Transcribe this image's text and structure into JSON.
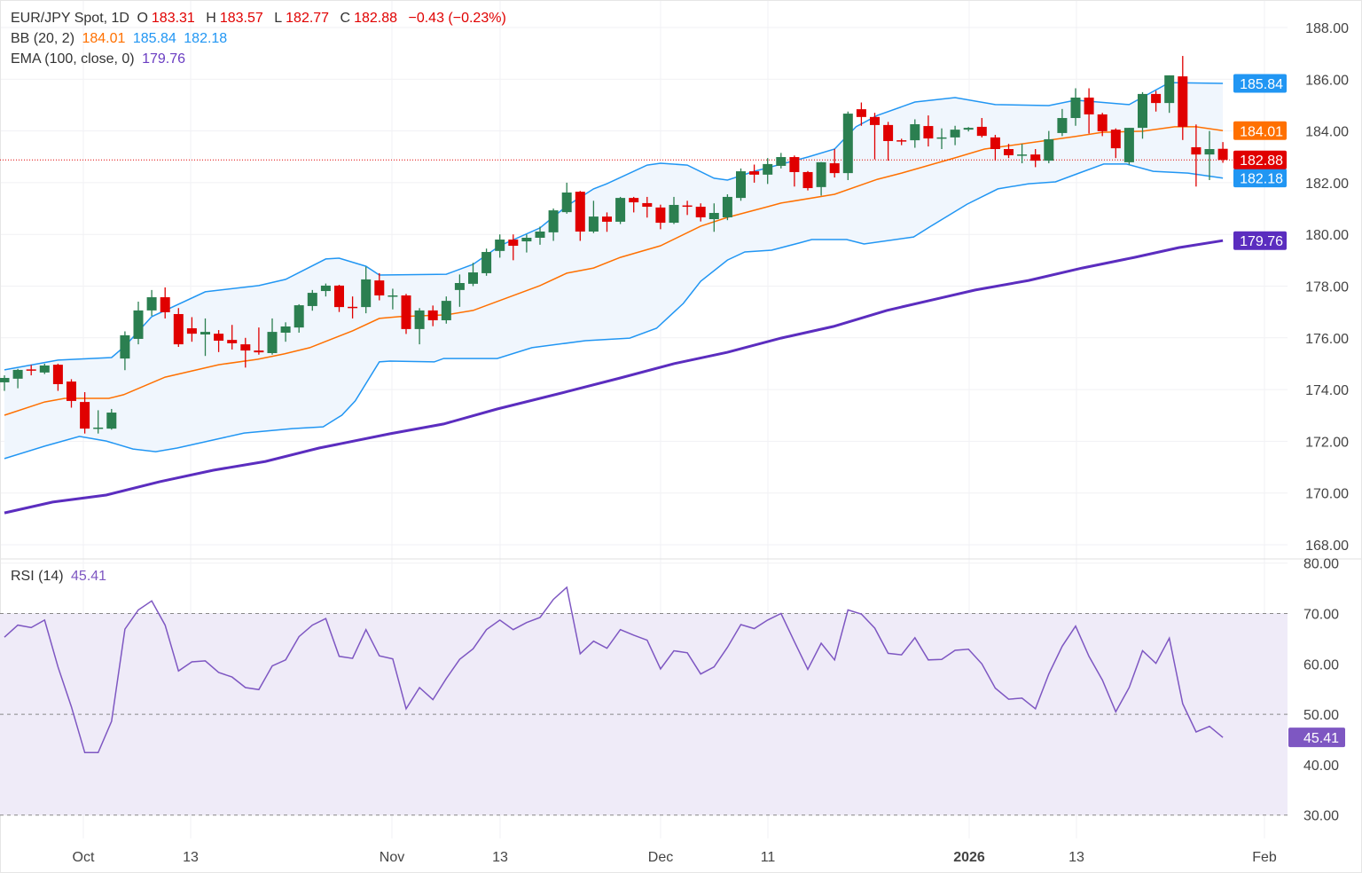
{
  "header": {
    "symbol": "EUR/JPY Spot, 1D",
    "open_label": "O",
    "open": "183.31",
    "high_label": "H",
    "high": "183.57",
    "low_label": "L",
    "low": "182.77",
    "close_label": "C",
    "close": "182.88",
    "change": "−0.43 (−0.23%)"
  },
  "bb_legend": {
    "label": "BB (20, 2)",
    "middle": "184.01",
    "upper": "185.84",
    "lower": "182.18"
  },
  "ema_legend": {
    "label": "EMA (100, close, 0)",
    "value": "179.76"
  },
  "rsi_legend": {
    "label": "RSI (14)",
    "value": "45.41"
  },
  "colors": {
    "up": "#2b7f50",
    "down": "#e00000",
    "bb_upper_lower": "#2196f3",
    "bb_middle": "#ff7000",
    "bb_fill": "#f0f6fd",
    "ema": "#5b2dbf",
    "rsi": "#7e57c2",
    "rsi_fill": "#efebf8",
    "last_price": "#e00000"
  },
  "chart_data": [
    {
      "type": "candlestick",
      "title": "EUR/JPY Spot, 1D",
      "ylim": [
        167.5,
        188.5
      ],
      "y_ticks": [
        "168.00",
        "170.00",
        "172.00",
        "174.00",
        "176.00",
        "178.00",
        "180.00",
        "182.00",
        "184.00",
        "186.00",
        "188.00"
      ],
      "x_ticks": [
        "Oct",
        "13",
        "Nov",
        "13",
        "Dec",
        "11",
        "2026",
        "13",
        "Feb"
      ],
      "grid": true,
      "ohlc": [
        [
          174.28,
          174.55,
          173.95,
          174.45
        ],
        [
          174.42,
          174.8,
          174.05,
          174.76
        ],
        [
          174.78,
          174.95,
          174.55,
          174.74
        ],
        [
          174.66,
          175.0,
          174.6,
          174.93
        ],
        [
          174.96,
          175.0,
          173.95,
          174.21
        ],
        [
          174.31,
          174.4,
          173.3,
          173.56
        ],
        [
          173.52,
          173.9,
          172.3,
          172.49
        ],
        [
          172.49,
          173.2,
          172.3,
          172.53
        ],
        [
          172.49,
          173.25,
          172.45,
          173.11
        ],
        [
          175.2,
          176.25,
          174.75,
          176.1
        ],
        [
          175.96,
          177.4,
          175.75,
          177.06
        ],
        [
          177.06,
          177.85,
          176.85,
          177.57
        ],
        [
          177.57,
          177.95,
          176.75,
          176.99
        ],
        [
          176.92,
          177.15,
          175.65,
          175.75
        ],
        [
          176.37,
          176.8,
          175.85,
          176.16
        ],
        [
          176.13,
          176.75,
          175.3,
          176.23
        ],
        [
          176.16,
          176.3,
          175.45,
          175.89
        ],
        [
          175.92,
          176.5,
          175.55,
          175.79
        ],
        [
          175.75,
          176.0,
          174.85,
          175.51
        ],
        [
          175.51,
          176.4,
          175.35,
          175.44
        ],
        [
          175.41,
          176.75,
          175.35,
          176.23
        ],
        [
          176.2,
          176.6,
          175.85,
          176.44
        ],
        [
          176.4,
          177.3,
          176.2,
          177.26
        ],
        [
          177.23,
          177.85,
          177.05,
          177.74
        ],
        [
          177.81,
          178.1,
          177.6,
          178.02
        ],
        [
          178.02,
          178.05,
          177.0,
          177.19
        ],
        [
          177.2,
          177.6,
          176.75,
          177.16
        ],
        [
          177.19,
          178.75,
          176.95,
          178.26
        ],
        [
          178.22,
          178.5,
          177.45,
          177.64
        ],
        [
          177.62,
          177.9,
          177.1,
          177.64
        ],
        [
          177.64,
          177.7,
          176.15,
          176.34
        ],
        [
          176.34,
          177.15,
          175.75,
          177.06
        ],
        [
          177.06,
          177.25,
          176.45,
          176.68
        ],
        [
          176.68,
          177.6,
          176.55,
          177.43
        ],
        [
          177.85,
          178.45,
          177.2,
          178.12
        ],
        [
          178.09,
          178.9,
          178.0,
          178.53
        ],
        [
          178.5,
          179.45,
          178.4,
          179.32
        ],
        [
          179.36,
          180.0,
          179.1,
          179.8
        ],
        [
          179.8,
          180.0,
          179.0,
          179.56
        ],
        [
          179.73,
          180.0,
          179.3,
          179.87
        ],
        [
          179.87,
          180.3,
          179.6,
          180.11
        ],
        [
          180.08,
          181.0,
          179.75,
          180.93
        ],
        [
          180.86,
          182.0,
          180.8,
          181.62
        ],
        [
          181.65,
          181.68,
          179.75,
          180.11
        ],
        [
          180.11,
          181.3,
          180.05,
          180.69
        ],
        [
          180.69,
          180.85,
          180.1,
          180.49
        ],
        [
          180.49,
          181.45,
          180.4,
          181.41
        ],
        [
          181.41,
          181.45,
          180.85,
          181.24
        ],
        [
          181.21,
          181.45,
          180.65,
          181.07
        ],
        [
          181.04,
          181.15,
          180.2,
          180.45
        ],
        [
          180.45,
          181.45,
          180.4,
          181.14
        ],
        [
          181.12,
          181.3,
          180.75,
          181.07
        ],
        [
          181.07,
          181.2,
          180.5,
          180.66
        ],
        [
          180.59,
          181.2,
          180.1,
          180.83
        ],
        [
          180.66,
          181.55,
          180.55,
          181.45
        ],
        [
          181.41,
          182.55,
          181.3,
          182.44
        ],
        [
          182.44,
          182.7,
          182.0,
          182.31
        ],
        [
          182.31,
          182.95,
          181.95,
          182.72
        ],
        [
          182.65,
          183.15,
          182.55,
          182.99
        ],
        [
          182.99,
          183.05,
          181.85,
          182.41
        ],
        [
          182.41,
          182.45,
          181.7,
          181.79
        ],
        [
          181.83,
          182.8,
          181.5,
          182.79
        ],
        [
          182.75,
          183.3,
          182.2,
          182.37
        ],
        [
          182.37,
          184.75,
          182.1,
          184.67
        ],
        [
          184.84,
          185.1,
          184.2,
          184.54
        ],
        [
          184.54,
          184.7,
          182.9,
          184.23
        ],
        [
          184.23,
          184.35,
          182.85,
          183.61
        ],
        [
          183.64,
          183.7,
          183.45,
          183.61
        ],
        [
          183.64,
          184.45,
          183.35,
          184.26
        ],
        [
          184.19,
          184.6,
          183.4,
          183.71
        ],
        [
          183.72,
          184.1,
          183.3,
          183.75
        ],
        [
          183.75,
          184.2,
          183.45,
          184.05
        ],
        [
          184.05,
          184.15,
          183.98,
          184.12
        ],
        [
          184.16,
          184.5,
          183.75,
          183.81
        ],
        [
          183.75,
          183.85,
          182.85,
          183.3
        ],
        [
          183.3,
          183.5,
          182.95,
          183.06
        ],
        [
          183.07,
          183.5,
          182.75,
          183.09
        ],
        [
          183.09,
          183.3,
          182.6,
          182.85
        ],
        [
          182.85,
          184.0,
          182.75,
          183.68
        ],
        [
          183.92,
          184.85,
          183.8,
          184.5
        ],
        [
          184.5,
          185.65,
          184.2,
          185.29
        ],
        [
          185.29,
          185.65,
          183.9,
          184.64
        ],
        [
          184.64,
          184.7,
          183.8,
          183.99
        ],
        [
          184.05,
          184.1,
          182.95,
          183.33
        ],
        [
          182.79,
          184.12,
          182.7,
          184.12
        ],
        [
          184.12,
          185.5,
          183.7,
          185.43
        ],
        [
          185.43,
          185.55,
          184.75,
          185.08
        ],
        [
          185.08,
          186.15,
          184.7,
          186.15
        ],
        [
          186.11,
          186.9,
          183.65,
          184.16
        ],
        [
          183.37,
          184.25,
          181.85,
          183.09
        ],
        [
          183.09,
          184.0,
          182.1,
          183.3
        ],
        [
          183.31,
          183.57,
          182.77,
          182.88
        ]
      ],
      "last_price": 182.88,
      "bb_upper": [
        [
          0,
          174.76
        ],
        [
          4,
          175.14
        ],
        [
          8,
          175.24
        ],
        [
          9,
          175.68
        ],
        [
          11,
          176.82
        ],
        [
          15,
          177.78
        ],
        [
          19,
          178.02
        ],
        [
          21,
          178.26
        ],
        [
          24,
          179.05
        ],
        [
          25,
          179.08
        ],
        [
          27,
          178.77
        ],
        [
          28,
          178.43
        ],
        [
          33,
          178.46
        ],
        [
          35,
          178.84
        ],
        [
          37,
          179.56
        ],
        [
          40,
          180.25
        ],
        [
          42,
          181.1
        ],
        [
          44,
          181.76
        ],
        [
          45,
          181.96
        ],
        [
          48,
          182.68
        ],
        [
          49,
          182.75
        ],
        [
          51,
          182.68
        ],
        [
          53,
          182.17
        ],
        [
          54,
          182.1
        ],
        [
          56,
          182.44
        ],
        [
          60,
          182.99
        ],
        [
          62,
          183.3
        ],
        [
          63.6,
          184.16
        ],
        [
          65.2,
          184.6
        ],
        [
          68,
          185.12
        ],
        [
          71,
          185.29
        ],
        [
          74,
          185.02
        ],
        [
          78,
          184.98
        ],
        [
          80,
          185.19
        ],
        [
          84,
          185.02
        ],
        [
          87,
          185.87
        ],
        [
          91,
          185.84
        ]
      ],
      "bb_middle": [
        [
          0,
          173.01
        ],
        [
          3,
          173.52
        ],
        [
          4.5,
          173.66
        ],
        [
          7.8,
          173.66
        ],
        [
          8.9,
          173.8
        ],
        [
          12,
          174.48
        ],
        [
          16,
          174.96
        ],
        [
          18.9,
          175.17
        ],
        [
          20.9,
          175.38
        ],
        [
          22.8,
          175.62
        ],
        [
          26,
          176.27
        ],
        [
          28,
          176.75
        ],
        [
          29.5,
          176.82
        ],
        [
          33,
          176.89
        ],
        [
          35,
          177.06
        ],
        [
          40,
          178.02
        ],
        [
          42,
          178.5
        ],
        [
          44,
          178.7
        ],
        [
          46,
          179.11
        ],
        [
          49,
          179.56
        ],
        [
          52,
          180.32
        ],
        [
          54,
          180.66
        ],
        [
          57,
          181.07
        ],
        [
          58,
          181.21
        ],
        [
          62,
          181.55
        ],
        [
          65.2,
          182.13
        ],
        [
          67,
          182.37
        ],
        [
          71,
          182.96
        ],
        [
          73.2,
          183.3
        ],
        [
          79.9,
          183.78
        ],
        [
          82,
          183.95
        ],
        [
          85,
          183.99
        ],
        [
          87.4,
          184.16
        ],
        [
          89,
          184.16
        ],
        [
          91,
          184.01
        ]
      ],
      "bb_lower": [
        [
          0,
          171.33
        ],
        [
          3,
          171.81
        ],
        [
          5.6,
          172.19
        ],
        [
          7.6,
          172.01
        ],
        [
          9.6,
          171.7
        ],
        [
          11.3,
          171.6
        ],
        [
          12.9,
          171.74
        ],
        [
          16.2,
          172.12
        ],
        [
          17.9,
          172.32
        ],
        [
          21.5,
          172.49
        ],
        [
          23.8,
          172.56
        ],
        [
          25.2,
          173.01
        ],
        [
          26.2,
          173.56
        ],
        [
          28,
          175.07
        ],
        [
          28.8,
          175.1
        ],
        [
          32.1,
          175.07
        ],
        [
          32.8,
          175.2
        ],
        [
          36.8,
          175.2
        ],
        [
          39.4,
          175.62
        ],
        [
          43.4,
          175.89
        ],
        [
          46.7,
          175.99
        ],
        [
          48.7,
          176.37
        ],
        [
          50.7,
          177.33
        ],
        [
          52,
          178.19
        ],
        [
          54,
          179.01
        ],
        [
          55.3,
          179.32
        ],
        [
          57.3,
          179.39
        ],
        [
          59.3,
          179.66
        ],
        [
          60.3,
          179.8
        ],
        [
          62.9,
          179.8
        ],
        [
          64.2,
          179.63
        ],
        [
          67.9,
          179.9
        ],
        [
          69.2,
          180.32
        ],
        [
          71.9,
          181.17
        ],
        [
          74.2,
          181.76
        ],
        [
          76.5,
          181.96
        ],
        [
          78.5,
          182.03
        ],
        [
          80.1,
          182.34
        ],
        [
          82.1,
          182.72
        ],
        [
          83.8,
          182.72
        ],
        [
          85.8,
          182.44
        ],
        [
          88.4,
          182.37
        ],
        [
          91,
          182.18
        ]
      ],
      "ema_100": [
        [
          0,
          169.23
        ],
        [
          3.6,
          169.65
        ],
        [
          7.6,
          169.92
        ],
        [
          11.6,
          170.44
        ],
        [
          15.6,
          170.88
        ],
        [
          19.5,
          171.22
        ],
        [
          23.5,
          171.74
        ],
        [
          28.8,
          172.29
        ],
        [
          32.8,
          172.67
        ],
        [
          36.8,
          173.25
        ],
        [
          42.1,
          173.93
        ],
        [
          46,
          174.45
        ],
        [
          50,
          175.0
        ],
        [
          54,
          175.44
        ],
        [
          58,
          175.99
        ],
        [
          61.9,
          176.44
        ],
        [
          65.9,
          177.06
        ],
        [
          69.9,
          177.54
        ],
        [
          72.5,
          177.85
        ],
        [
          76.5,
          178.22
        ],
        [
          80.5,
          178.7
        ],
        [
          84.4,
          179.11
        ],
        [
          87.7,
          179.49
        ],
        [
          91,
          179.76
        ]
      ]
    },
    {
      "type": "line",
      "title": "RSI (14)",
      "ylim": [
        28,
        81
      ],
      "y_ticks": [
        "30.00",
        "40.00",
        "50.00",
        "60.00",
        "70.00",
        "80.00"
      ],
      "levels": [
        70,
        50,
        30
      ],
      "values": [
        65.3,
        67.7,
        67.2,
        68.7,
        59.4,
        51.5,
        42.4,
        42.4,
        48.6,
        66.9,
        70.7,
        72.5,
        67.7,
        58.6,
        60.4,
        60.6,
        58.3,
        57.4,
        55.3,
        54.9,
        59.6,
        60.8,
        65.4,
        67.7,
        69.0,
        61.5,
        61.1,
        66.8,
        61.6,
        61.0,
        51.1,
        55.3,
        52.9,
        57.1,
        60.9,
        63.0,
        66.8,
        68.7,
        66.8,
        68.2,
        69.2,
        72.8,
        75.2,
        62.0,
        64.5,
        63.1,
        66.8,
        65.7,
        64.7,
        59.0,
        62.6,
        62.2,
        58.0,
        59.4,
        63.3,
        67.8,
        67.0,
        68.7,
        70.0,
        64.4,
        58.9,
        64.1,
        60.8,
        70.7,
        69.9,
        67.1,
        62.1,
        61.8,
        65.2,
        60.8,
        60.9,
        62.7,
        62.9,
        60.0,
        55.2,
        53.0,
        53.2,
        51.1,
        58.0,
        63.5,
        67.5,
        61.5,
        56.8,
        50.5,
        55.3,
        62.6,
        60.1,
        65.1,
        52.1,
        46.5,
        47.6,
        45.41
      ],
      "last_value": "45.41"
    }
  ]
}
